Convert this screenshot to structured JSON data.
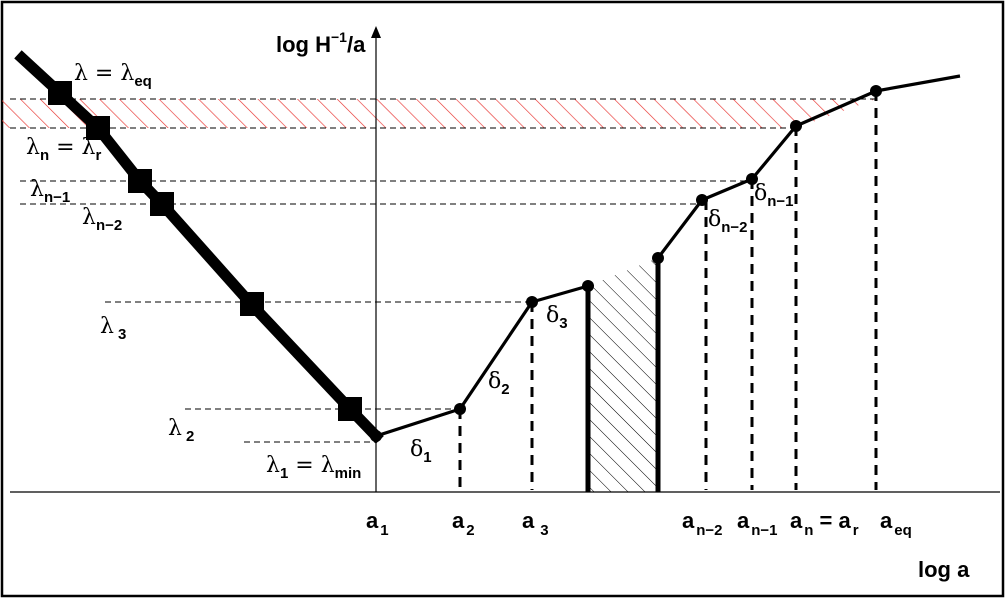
{
  "axes": {
    "y_label": "log H",
    "y_label_sup": "−1",
    "y_label_tail": "/a",
    "x_label": "log a"
  },
  "lambda_labels": {
    "eq": {
      "sym": "λ = λ",
      "sub": "eq"
    },
    "n": {
      "sym": "λ",
      "sub": "n",
      "mid": " = λ",
      "sub2": "r"
    },
    "n1": {
      "sym": "λ",
      "sub": "n−1"
    },
    "n2": {
      "sym": "λ",
      "sub": "n−2"
    },
    "l3": {
      "sym": "λ",
      "sub": "3"
    },
    "l2": {
      "sym": "λ",
      "sub": "2"
    },
    "l1": {
      "sym": "λ",
      "sub": "1",
      "mid": " = λ",
      "sub2": "min"
    }
  },
  "delta_labels": {
    "d1": {
      "sym": "δ",
      "sub": "1"
    },
    "d2": {
      "sym": "δ",
      "sub": "2"
    },
    "d3": {
      "sym": "δ",
      "sub": "3"
    },
    "dn2": {
      "sym": "δ",
      "sub": "n−2"
    },
    "dn1": {
      "sym": "δ",
      "sub": "n−1"
    }
  },
  "a_labels": {
    "a1": {
      "sym": "a",
      "sub": "1"
    },
    "a2": {
      "sym": "a",
      "sub": "2"
    },
    "a3": {
      "sym": "a",
      "sub": "3"
    },
    "an2": {
      "sym": "a",
      "sub": "n−2"
    },
    "an1": {
      "sym": "a",
      "sub": "n−1"
    },
    "an": {
      "sym": "a",
      "sub": "n",
      "mid": " = a",
      "sub2": "r"
    },
    "aeq": {
      "sym": "a",
      "sub": "eq"
    }
  },
  "colors": {
    "ink": "#000000",
    "hatch_red": "#e8322f"
  }
}
